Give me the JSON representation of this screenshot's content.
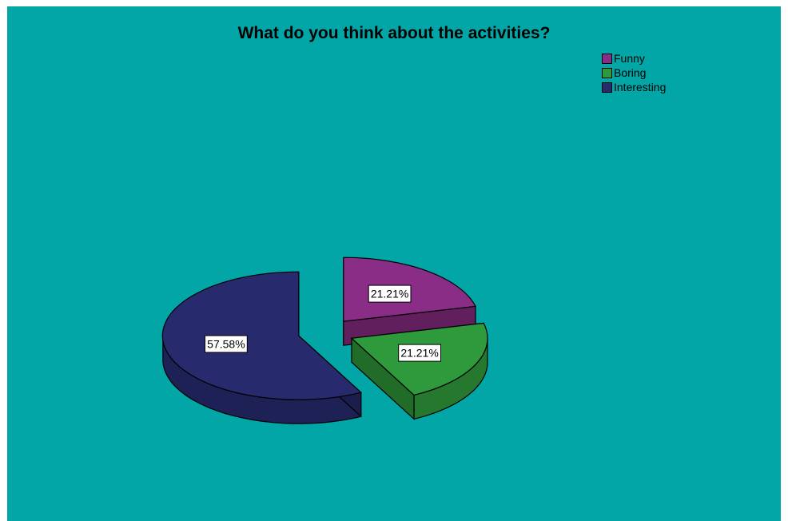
{
  "chart_data": {
    "type": "pie",
    "title": "What do you think about the activities?",
    "categories": [
      "Funny",
      "Boring",
      "Interesting"
    ],
    "values": [
      21.21,
      21.21,
      57.58
    ],
    "data_labels": [
      "21.21%",
      "21.21%",
      "57.58%"
    ],
    "colors": [
      "#8a2d86",
      "#2f9a3b",
      "#272a6d"
    ],
    "legend": "top-right",
    "exploded": true,
    "three_d": true
  },
  "colors": {
    "background": "#03a6a6",
    "page": "#ffffff"
  }
}
